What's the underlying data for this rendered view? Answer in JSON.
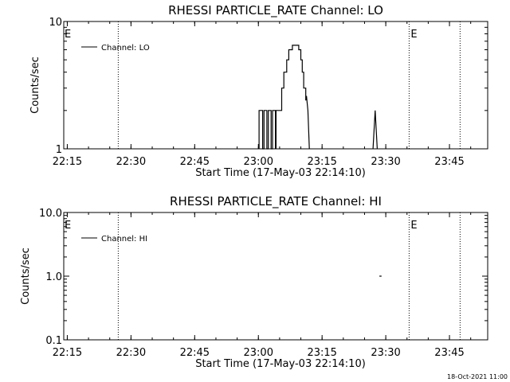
{
  "footer_date": "18-Oct-2021 11:00",
  "chart_data": [
    {
      "type": "line",
      "title": "RHESSI PARTICLE_RATE Channel: LO",
      "xlabel": "Start Time (17-May-03 22:14:10)",
      "ylabel": "Counts/sec",
      "yscale": "log",
      "ylim": [
        1,
        10
      ],
      "ytick_labels": [
        "1",
        "10"
      ],
      "ytick_values": [
        1,
        10
      ],
      "xlim": [
        "22:14:10",
        "23:54:00"
      ],
      "xtick_labels": [
        "22:15",
        "22:30",
        "22:45",
        "23:00",
        "23:15",
        "23:30",
        "23:45"
      ],
      "markers": [
        {
          "x": "22:27:00",
          "label": ""
        },
        {
          "x": "23:35:30",
          "label": "E"
        },
        {
          "x": "23:47:30",
          "label": ""
        }
      ],
      "start_marker_label": "E",
      "legend": {
        "position": "top-left",
        "entries": [
          "Channel: LO"
        ]
      },
      "series": [
        {
          "name": "Channel: LO",
          "segments": [
            [
              [
                "23:00:10",
                1
              ],
              [
                "23:00:10",
                2
              ],
              [
                "23:01:00",
                2
              ],
              [
                "23:01:00",
                1
              ],
              [
                "23:01:20",
                1
              ],
              [
                "23:01:20",
                2
              ],
              [
                "23:02:00",
                2
              ],
              [
                "23:02:00",
                1
              ],
              [
                "23:02:20",
                1
              ],
              [
                "23:02:20",
                2
              ],
              [
                "23:03:00",
                2
              ],
              [
                "23:03:00",
                1
              ],
              [
                "23:03:20",
                1
              ],
              [
                "23:03:20",
                2
              ],
              [
                "23:04:00",
                2
              ],
              [
                "23:04:00",
                1
              ]
            ],
            [
              [
                "23:04:10",
                1
              ],
              [
                "23:04:10",
                2
              ],
              [
                "23:05:30",
                2
              ],
              [
                "23:05:30",
                3
              ],
              [
                "23:06:00",
                3
              ],
              [
                "23:06:00",
                4
              ],
              [
                "23:06:40",
                4
              ],
              [
                "23:06:40",
                5
              ],
              [
                "23:07:10",
                5
              ],
              [
                "23:07:10",
                6
              ],
              [
                "23:08:00",
                6
              ],
              [
                "23:08:00",
                6.5
              ],
              [
                "23:09:30",
                6.5
              ],
              [
                "23:09:30",
                6
              ],
              [
                "23:10:00",
                6
              ],
              [
                "23:10:00",
                5
              ],
              [
                "23:10:20",
                5
              ],
              [
                "23:10:20",
                4
              ],
              [
                "23:10:40",
                4
              ],
              [
                "23:10:40",
                3
              ],
              [
                "23:11:10",
                3
              ],
              [
                "23:11:10",
                2.4
              ],
              [
                "23:11:20",
                2.6
              ],
              [
                "23:11:40",
                2
              ],
              [
                "23:12:00",
                1
              ]
            ],
            [
              [
                "23:27:00",
                1
              ],
              [
                "23:27:30",
                2
              ],
              [
                "23:28:00",
                1
              ]
            ]
          ]
        }
      ]
    },
    {
      "type": "line",
      "title": "RHESSI PARTICLE_RATE Channel: HI",
      "xlabel": "Start Time (17-May-03 22:14:10)",
      "ylabel": "Counts/sec",
      "yscale": "log",
      "ylim": [
        0.1,
        10
      ],
      "ytick_labels": [
        "0.1",
        "1.0",
        "10.0"
      ],
      "ytick_values": [
        0.1,
        1,
        10
      ],
      "xlim": [
        "22:14:10",
        "23:54:00"
      ],
      "xtick_labels": [
        "22:15",
        "22:30",
        "22:45",
        "23:00",
        "23:15",
        "23:30",
        "23:45"
      ],
      "markers": [
        {
          "x": "22:27:00",
          "label": ""
        },
        {
          "x": "23:35:30",
          "label": "E"
        },
        {
          "x": "23:47:30",
          "label": ""
        }
      ],
      "start_marker_label": "E",
      "legend": {
        "position": "top-left",
        "entries": [
          "Channel: HI"
        ]
      },
      "series": [
        {
          "name": "Channel: HI",
          "segments": [
            [
              [
                "23:28:30",
                1
              ],
              [
                "23:29:00",
                1
              ]
            ]
          ]
        }
      ]
    }
  ]
}
